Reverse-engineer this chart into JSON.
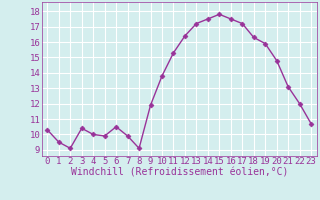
{
  "x": [
    0,
    1,
    2,
    3,
    4,
    5,
    6,
    7,
    8,
    9,
    10,
    11,
    12,
    13,
    14,
    15,
    16,
    17,
    18,
    19,
    20,
    21,
    22,
    23
  ],
  "y": [
    10.3,
    9.5,
    9.1,
    10.4,
    10.0,
    9.9,
    10.5,
    9.9,
    9.1,
    11.9,
    13.8,
    15.3,
    16.4,
    17.2,
    17.5,
    17.8,
    17.5,
    17.2,
    16.3,
    15.9,
    14.8,
    13.1,
    12.0,
    10.7
  ],
  "line_color": "#993399",
  "marker": "D",
  "marker_size": 2.5,
  "bg_color": "#d4eeee",
  "grid_color": "#ffffff",
  "xlabel": "Windchill (Refroidissement éolien,°C)",
  "xlabel_fontsize": 7,
  "ytick_values": [
    9,
    10,
    11,
    12,
    13,
    14,
    15,
    16,
    17,
    18
  ],
  "ylim": [
    8.6,
    18.6
  ],
  "xlim": [
    -0.5,
    23.5
  ],
  "tick_fontsize": 6.5,
  "tick_color": "#993399",
  "linewidth": 1.0
}
